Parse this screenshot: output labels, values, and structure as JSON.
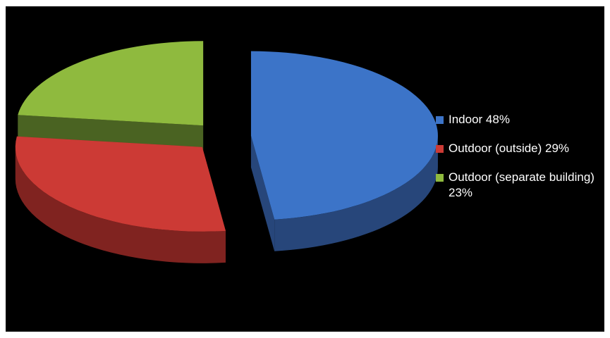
{
  "chart_data": {
    "type": "pie",
    "style": "3d-exploded",
    "title": "",
    "slices": [
      {
        "label": "Indoor 48%",
        "value": 48,
        "color": "#3c74c8",
        "side_color": "#27467a"
      },
      {
        "label": "Outdoor (outside) 29%",
        "value": 29,
        "color": "#cc3a35",
        "side_color": "#802320"
      },
      {
        "label": "Outdoor (separate building) 23%",
        "value": 23,
        "color": "#8fba3e",
        "side_color": "#4a6322"
      }
    ],
    "legend": {
      "placement": "right",
      "text_color": "#ffffff"
    },
    "background": "#000000"
  }
}
